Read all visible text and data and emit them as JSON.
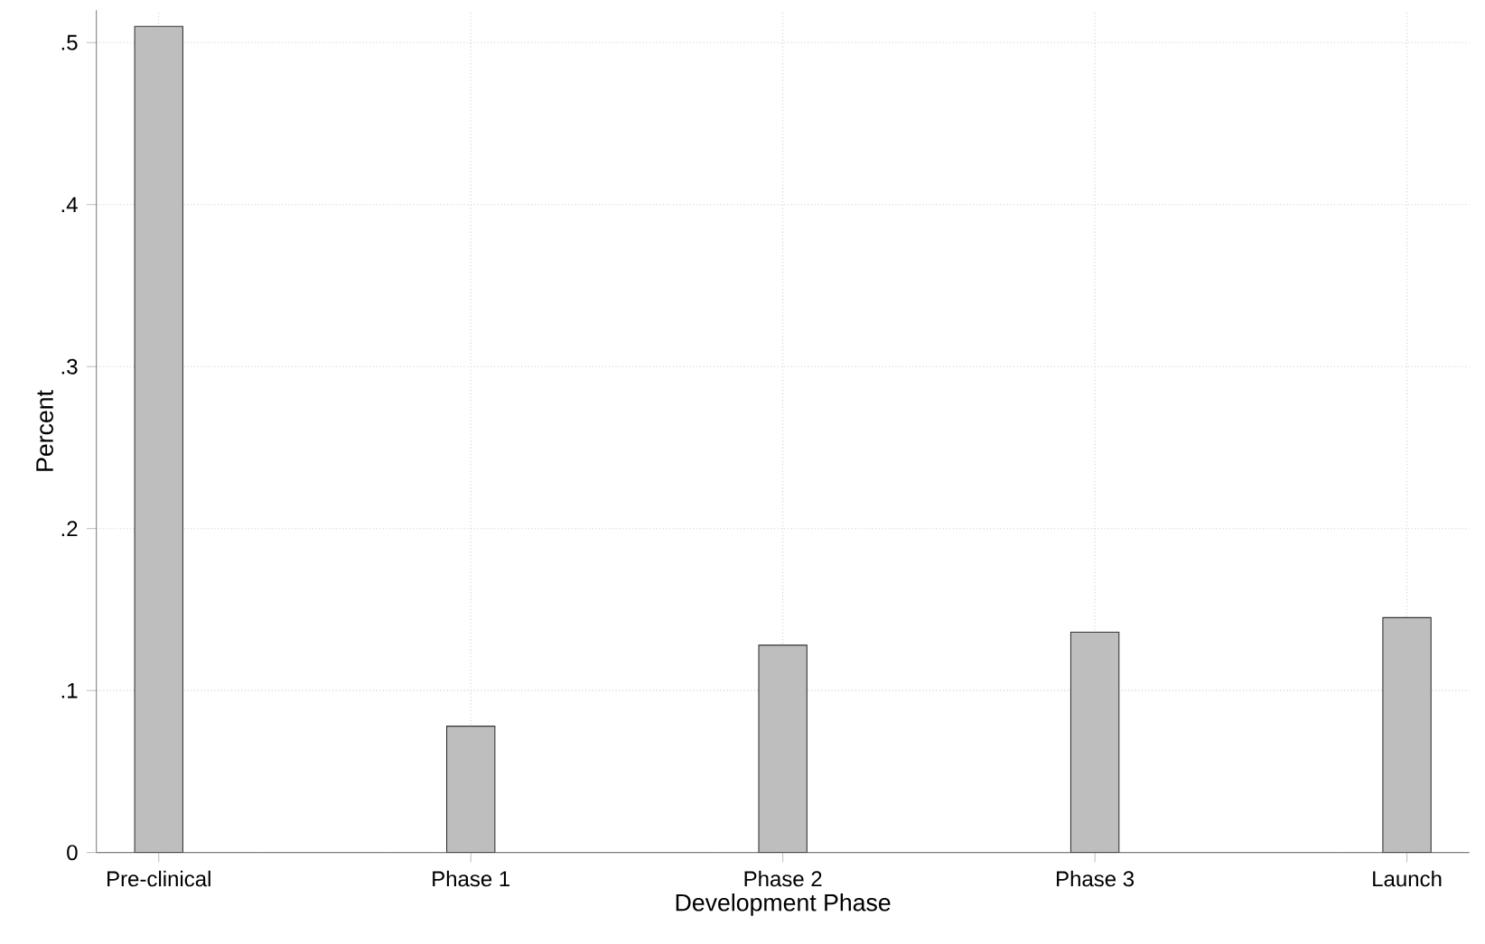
{
  "chart_data": {
    "type": "bar",
    "xlabel": "Development Phase",
    "ylabel": "Percent",
    "categories": [
      "Pre-clinical",
      "Phase 1",
      "Phase 2",
      "Phase 3",
      "Launch"
    ],
    "values": [
      0.51,
      0.078,
      0.128,
      0.136,
      0.145
    ],
    "color": "#bebebe",
    "ylim": [
      0,
      0.52
    ],
    "yticks": [
      {
        "value": 0,
        "label": "0"
      },
      {
        "value": 0.1,
        "label": ".1"
      },
      {
        "value": 0.2,
        "label": ".2"
      },
      {
        "value": 0.3,
        "label": ".3"
      },
      {
        "value": 0.4,
        "label": ".4"
      },
      {
        "value": 0.5,
        "label": ".5"
      }
    ],
    "grid": true
  }
}
